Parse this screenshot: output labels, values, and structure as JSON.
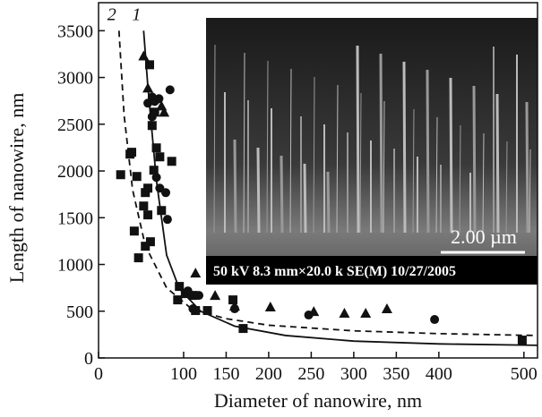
{
  "chart_data": {
    "type": "scatter",
    "x_label": "Diameter of nanowire, nm",
    "y_label": "Length of nanowire, nm",
    "xlim": [
      0,
      516
    ],
    "ylim": [
      0,
      3800
    ],
    "xticks": [
      0,
      100,
      150,
      200,
      250,
      300,
      350,
      400,
      500
    ],
    "yticks": [
      0,
      500,
      1000,
      1500,
      2000,
      2500,
      3000,
      3500
    ],
    "series": [
      {
        "marker": "square",
        "color": "#111",
        "x": [
          26,
          37,
          39,
          45,
          42,
          47,
          53,
          55,
          55,
          58,
          58,
          61,
          60,
          63,
          65,
          66,
          68,
          72,
          74,
          86,
          93,
          95,
          102,
          111,
          114,
          128,
          158,
          170,
          498
        ],
        "values": [
          1960,
          2180,
          2200,
          1941,
          1357,
          1071,
          1625,
          1769,
          1195,
          1530,
          1816,
          1243,
          3136,
          2486,
          2008,
          2629,
          2247,
          2151,
          1577,
          2103,
          621,
          765,
          688,
          669,
          507,
          507,
          621,
          315,
          191
        ]
      },
      {
        "marker": "circle",
        "color": "#111",
        "x": [
          58,
          63,
          66,
          71,
          63,
          68,
          72,
          79,
          81,
          84,
          105,
          111,
          118,
          160,
          247,
          395
        ],
        "values": [
          2725,
          2791,
          2744,
          2773,
          2581,
          1931,
          1816,
          1768,
          1482,
          2868,
          717,
          526,
          669,
          526,
          459,
          411
        ]
      },
      {
        "marker": "triangle",
        "color": "#111",
        "x": [
          53,
          58,
          74,
          77,
          114,
          137,
          160,
          202,
          253,
          289,
          314,
          339
        ],
        "values": [
          3231,
          2887,
          2696,
          2629,
          908,
          669,
          555,
          545,
          497,
          478,
          478,
          526
        ]
      }
    ],
    "curves": [
      {
        "label": "1",
        "dash": false,
        "x": [
          53,
          58,
          68,
          80,
          95,
          120,
          160,
          220,
          300,
          400,
          516
        ],
        "values": [
          3500,
          2900,
          1900,
          1100,
          740,
          500,
          340,
          240,
          180,
          150,
          135
        ]
      },
      {
        "label": "2",
        "dash": true,
        "x": [
          24,
          30,
          40,
          55,
          80,
          110,
          150,
          200,
          300,
          400,
          516
        ],
        "values": [
          3500,
          2600,
          1800,
          1200,
          750,
          520,
          420,
          350,
          290,
          260,
          240
        ]
      }
    ],
    "inset": {
      "scale_bar": "2.00 µm",
      "caption": "50 kV  8.3 mm×20.0 k SE(M) 10/27/2005"
    }
  }
}
